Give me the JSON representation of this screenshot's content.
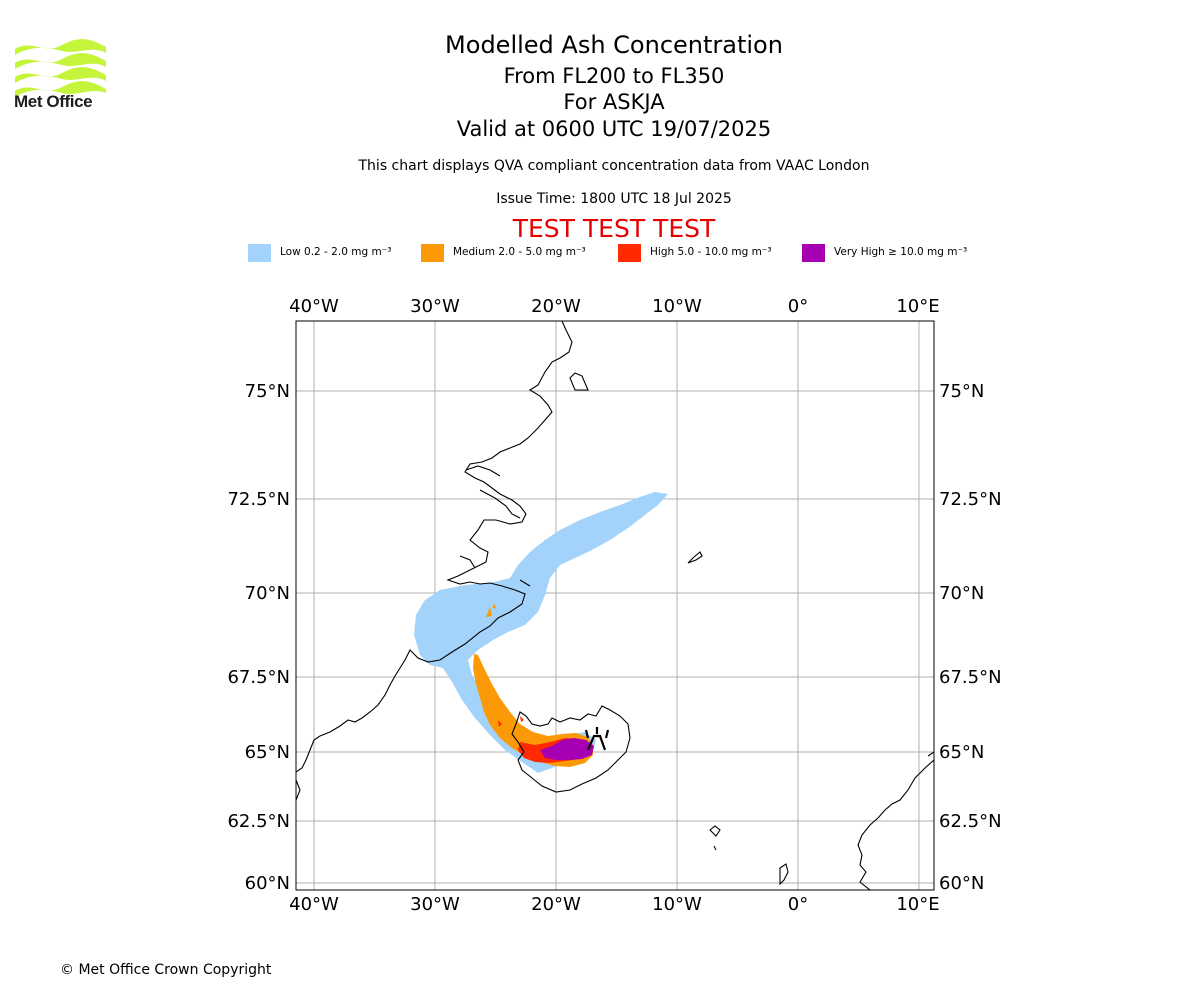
{
  "header": {
    "logo_text": "Met Office",
    "title": "Modelled Ash Concentration",
    "subtitle_levels": "From FL200 to FL350",
    "subtitle_volcano": "For ASKJA",
    "subtitle_valid": "Valid at 0600 UTC 19/07/2025",
    "description": "This chart displays QVA compliant concentration data from VAAC London",
    "issue_time": "Issue Time: 1800 UTC 18 Jul 2025",
    "test_banner": "TEST TEST TEST"
  },
  "legend": [
    {
      "label": "Low 0.2 - 2.0 mg m⁻³",
      "color": "#a3d3fa"
    },
    {
      "label": "Medium 2.0 - 5.0 mg m⁻³",
      "color": "#fb9a06"
    },
    {
      "label": "High 5.0 - 10.0 mg m⁻³",
      "color": "#ff2a00"
    },
    {
      "label": "Very High ≥ 10.0 mg m⁻³",
      "color": "#a700b2"
    }
  ],
  "map": {
    "lon_ticks": [
      "40°W",
      "30°W",
      "20°W",
      "10°W",
      "0°",
      "10°E"
    ],
    "lat_ticks": [
      "75°N",
      "72.5°N",
      "70°N",
      "67.5°N",
      "65°N",
      "62.5°N",
      "60°N"
    ],
    "volcano_icon": "volcano-marker-icon",
    "grid": true
  },
  "footer": {
    "copyright": "© Met Office Crown Copyright"
  }
}
